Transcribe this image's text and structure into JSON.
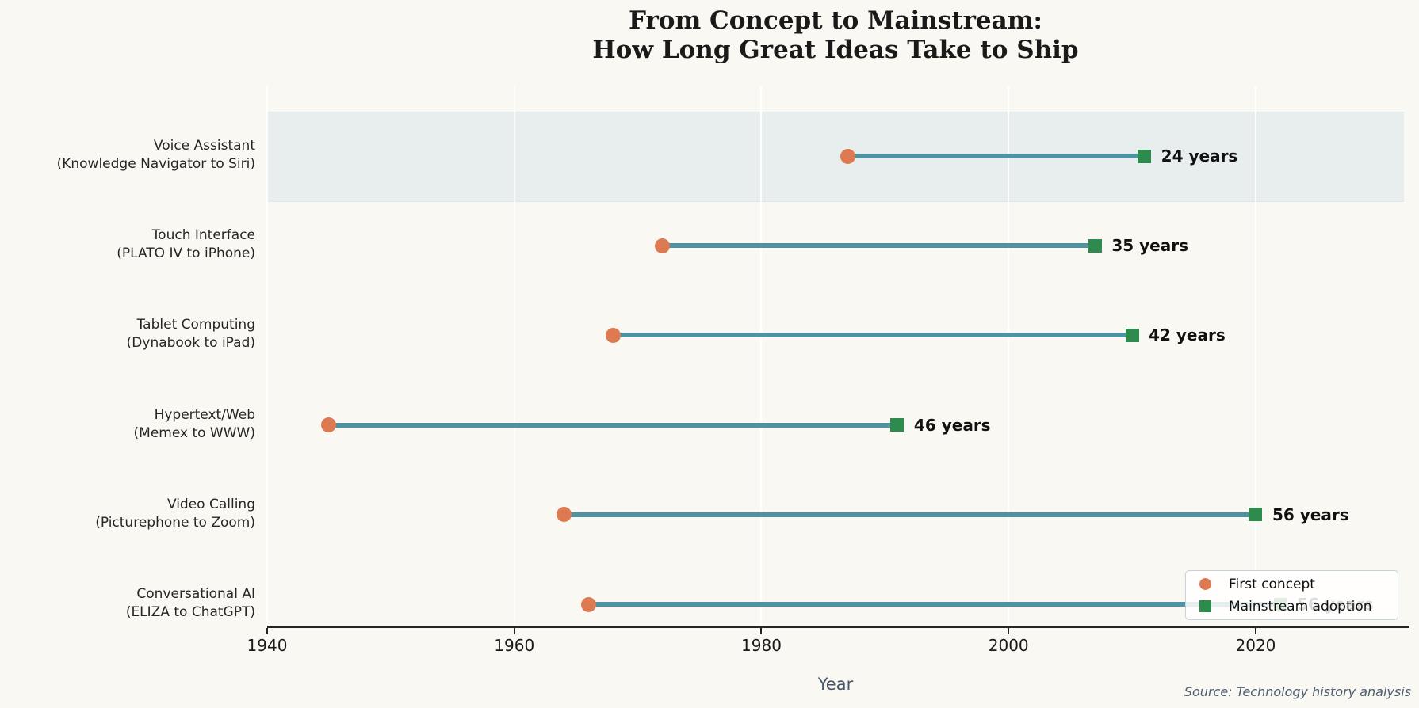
{
  "title": {
    "line1": "From Concept to Mainstream:",
    "line2": "How Long Great Ideas Take to Ship"
  },
  "source": "Source: Technology history analysis",
  "chart_data": {
    "type": "dumbbell",
    "title": "From Concept to Mainstream: How Long Great Ideas Take to Ship",
    "xlabel": "Year",
    "xlim": [
      1940,
      2032
    ],
    "xticks": [
      1940,
      1960,
      1980,
      2000,
      2020
    ],
    "grid": "vertical white gridlines at each x tick",
    "legend": {
      "position": "lower right",
      "items": [
        {
          "label": "First concept",
          "marker": "circle",
          "color": "#dd7a52"
        },
        {
          "label": "Mainstream adoption",
          "marker": "square",
          "color": "#2e8b4e"
        }
      ]
    },
    "rows": [
      {
        "category": "Voice Assistant",
        "subtitle": "(Knowledge Navigator to Siri)",
        "concept_year": 1987,
        "adoption_year": 2011,
        "duration_label": "24 years",
        "highlighted": true
      },
      {
        "category": "Touch Interface",
        "subtitle": "(PLATO IV to iPhone)",
        "concept_year": 1972,
        "adoption_year": 2007,
        "duration_label": "35 years",
        "highlighted": false
      },
      {
        "category": "Tablet Computing",
        "subtitle": "(Dynabook to iPad)",
        "concept_year": 1968,
        "adoption_year": 2010,
        "duration_label": "42 years",
        "highlighted": false
      },
      {
        "category": "Hypertext/Web",
        "subtitle": "(Memex to WWW)",
        "concept_year": 1945,
        "adoption_year": 1991,
        "duration_label": "46 years",
        "highlighted": false
      },
      {
        "category": "Video Calling",
        "subtitle": "(Picturephone to Zoom)",
        "concept_year": 1964,
        "adoption_year": 2020,
        "duration_label": "56 years",
        "highlighted": false
      },
      {
        "category": "Conversational AI",
        "subtitle": "(ELIZA to ChatGPT)",
        "concept_year": 1966,
        "adoption_year": 2022,
        "duration_label": "56 years",
        "highlighted": false
      }
    ],
    "colors": {
      "background": "#faf8f2",
      "highlight_band": "#e8edee",
      "connector_line": "#4f93a3",
      "concept_marker": "#dd7a52",
      "adoption_marker": "#2e8b4e",
      "axis": "#262626",
      "text": "#1a1a1a",
      "muted_text": "#47566b"
    }
  }
}
